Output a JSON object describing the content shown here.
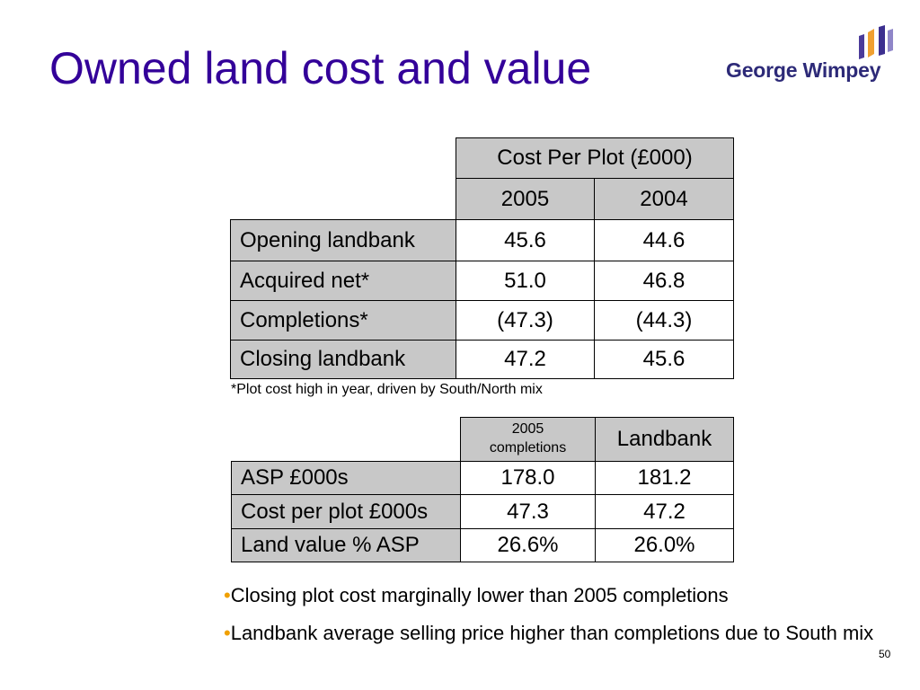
{
  "slide": {
    "title": "Owned land cost and value",
    "page_number": "50",
    "title_color": "#330099"
  },
  "logo": {
    "text": "George Wimpey",
    "icon": "george-wimpey-logo-mark",
    "colors": {
      "text": "#2d2a78",
      "orange": "#f0a030",
      "purple": "#4b3b9a"
    }
  },
  "cost_per_plot_table": {
    "header": "Cost Per Plot (£000)",
    "columns": [
      "2005",
      "2004"
    ],
    "rows": [
      {
        "label": "Opening landbank",
        "values": [
          "45.6",
          "44.6"
        ]
      },
      {
        "label": "Acquired net*",
        "values": [
          "51.0",
          "46.8"
        ]
      },
      {
        "label": "Completions*",
        "values": [
          "(47.3)",
          "(44.3)"
        ]
      },
      {
        "label": "Closing landbank",
        "values": [
          "47.2",
          "45.6"
        ]
      }
    ],
    "footnote": "*Plot cost high in year, driven by South/North mix",
    "header_fill": "#c8c8c8"
  },
  "land_value_table": {
    "columns": [
      "2005 completions",
      "Landbank"
    ],
    "rows": [
      {
        "label": "ASP £000s",
        "values": [
          "178.0",
          "181.2"
        ]
      },
      {
        "label": "Cost per plot £000s",
        "values": [
          "47.3",
          "47.2"
        ]
      },
      {
        "label": "Land value % ASP",
        "values": [
          "26.6%",
          "26.0%"
        ]
      }
    ]
  },
  "bullets": {
    "marker": "•",
    "marker_color": "#f0a000",
    "items": [
      "Closing plot cost marginally lower than 2005 completions",
      "Landbank average selling price higher than completions due to South mix"
    ]
  }
}
